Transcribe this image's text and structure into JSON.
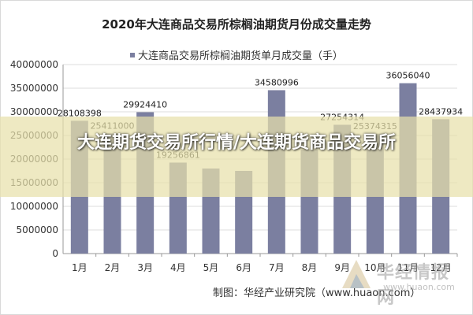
{
  "chart_data": {
    "type": "bar",
    "title": "2020年大连商品交易所棕榈油期货月份成交量走势",
    "series": [
      {
        "name": "大连商品交易所棕榈油期货单月成交量（手）",
        "values": [
          28108398,
          25411000,
          29924410,
          19256861,
          18000000,
          17500000,
          34580996,
          22000000,
          27254314,
          25374315,
          36056040,
          28437934
        ],
        "value_labels": [
          "28108398",
          "25411000",
          "29924410",
          "19256861",
          "",
          "",
          "34580996",
          "",
          "27254314",
          "25374315",
          "36056040",
          "28437934"
        ]
      }
    ],
    "categories": [
      "1月",
      "2月",
      "3月",
      "4月",
      "5月",
      "6月",
      "7月",
      "8月",
      "9月",
      "10月",
      "11月",
      "12月"
    ],
    "ylim": [
      0,
      40000000
    ],
    "yticks": [
      "0",
      "5000000",
      "10000000",
      "15000000",
      "20000000",
      "25000000",
      "30000000",
      "35000000",
      "40000000"
    ],
    "ytick_values": [
      0,
      5000000,
      10000000,
      15000000,
      20000000,
      25000000,
      30000000,
      35000000,
      40000000
    ],
    "grid": true,
    "legend_position": "top",
    "bar_color": "#7b7fa0",
    "source": "制图：华经产业研究院（www.huaon.com）"
  },
  "overlay": {
    "text": "大连期货交易所行情/大连期货商品交易所",
    "color": "#e8e0aa"
  },
  "watermark": {
    "name": "华经情报网",
    "url": "www.huaon.com"
  }
}
